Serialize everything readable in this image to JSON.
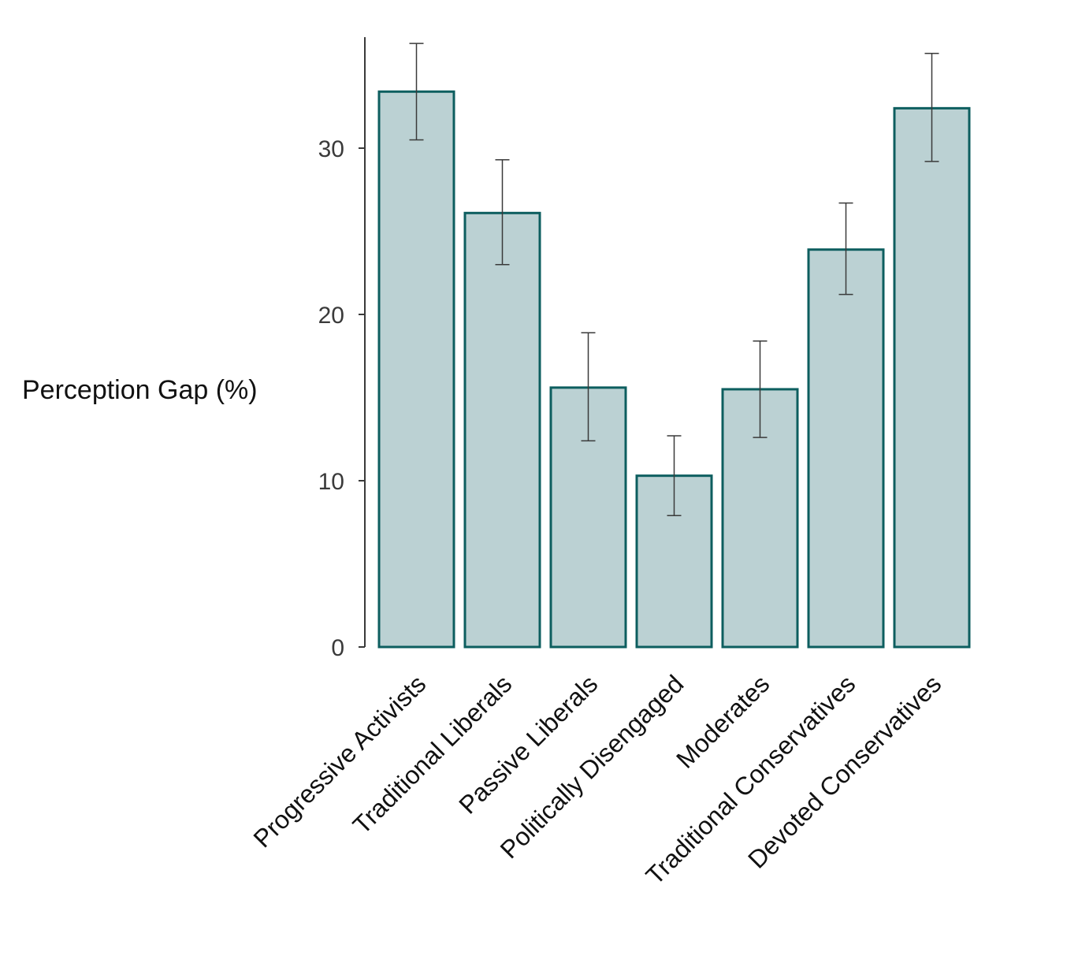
{
  "chart_data": {
    "type": "bar",
    "title": "",
    "xlabel": "",
    "ylabel": "Perception Gap (%)",
    "categories": [
      "Progressive Activists",
      "Traditional Liberals",
      "Passive Liberals",
      "Politically Disengaged",
      "Moderates",
      "Traditional Conservatives",
      "Devoted Conservatives"
    ],
    "values": [
      33.4,
      26.1,
      15.6,
      10.3,
      15.5,
      23.9,
      32.4
    ],
    "error_low": [
      30.5,
      23.0,
      12.4,
      7.9,
      12.6,
      21.2,
      29.2
    ],
    "error_high": [
      36.3,
      29.3,
      18.9,
      12.7,
      18.4,
      26.7,
      35.7
    ],
    "ylim": [
      0,
      36.3
    ],
    "yticks": [
      0,
      10,
      20,
      30
    ],
    "grid": false,
    "legend": "none",
    "colors": {
      "bar_fill": "#bbd1d3",
      "bar_stroke": "#0d5e5f",
      "error_bar": "#3a3a3a",
      "axis": "#3a3a3a"
    }
  }
}
